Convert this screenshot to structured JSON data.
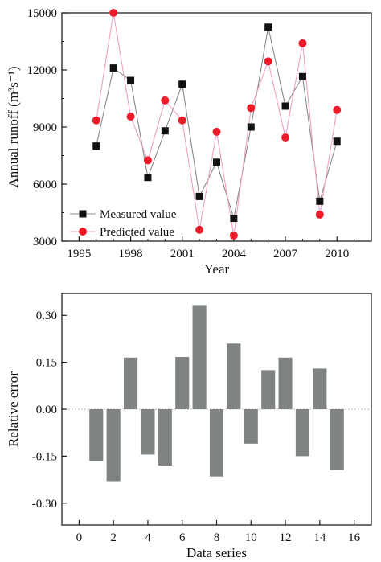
{
  "chart_data": [
    {
      "type": "line",
      "title": "",
      "xlabel": "Year",
      "ylabel": "Annual runoff (m³s⁻¹)",
      "xlim": [
        1994,
        2012
      ],
      "ylim": [
        3000,
        15000
      ],
      "xticks": [
        1995,
        1998,
        2001,
        2004,
        2007,
        2010
      ],
      "yticks": [
        3000,
        6000,
        9000,
        12000,
        15000
      ],
      "x": [
        1996,
        1997,
        1998,
        1999,
        2000,
        2001,
        2002,
        2003,
        2004,
        2005,
        2006,
        2007,
        2008,
        2009,
        2010
      ],
      "series": [
        {
          "name": "Measured value",
          "marker": "square",
          "color": "#111111",
          "line_color": "#8a8a8a",
          "values": [
            8000,
            12100,
            11450,
            6350,
            8800,
            11250,
            5350,
            7150,
            4200,
            9000,
            14250,
            10100,
            11650,
            5100,
            8250
          ]
        },
        {
          "name": "Predicted value",
          "marker": "circle",
          "color": "#ee1c2a",
          "line_color": "#f0a0c8",
          "values": [
            9350,
            15000,
            9550,
            7250,
            10400,
            9350,
            3600,
            8750,
            3300,
            10000,
            12450,
            8450,
            13400,
            4400,
            9900
          ]
        }
      ],
      "legend": "bottom-left",
      "grid": false
    },
    {
      "type": "bar",
      "title": "",
      "xlabel": "Data series",
      "ylabel": "Relative error",
      "xlim": [
        -1,
        17
      ],
      "ylim": [
        -0.37,
        0.37
      ],
      "xticks": [
        0,
        2,
        4,
        6,
        8,
        10,
        12,
        14,
        16
      ],
      "yticks": [
        -0.3,
        -0.15,
        0.0,
        0.15,
        0.3
      ],
      "ytick_labels": [
        "-0.30",
        "-0.15",
        "0.00",
        "0.15",
        "0.30"
      ],
      "categories": [
        1,
        2,
        3,
        4,
        5,
        6,
        7,
        8,
        9,
        10,
        11,
        12,
        13,
        14,
        15
      ],
      "values": [
        -0.165,
        -0.23,
        0.165,
        -0.145,
        -0.18,
        0.167,
        0.333,
        -0.215,
        0.21,
        -0.11,
        0.125,
        0.165,
        -0.15,
        0.13,
        -0.195
      ],
      "bar_color": "#7f8480",
      "zero_line": "dotted",
      "grid": false
    }
  ]
}
